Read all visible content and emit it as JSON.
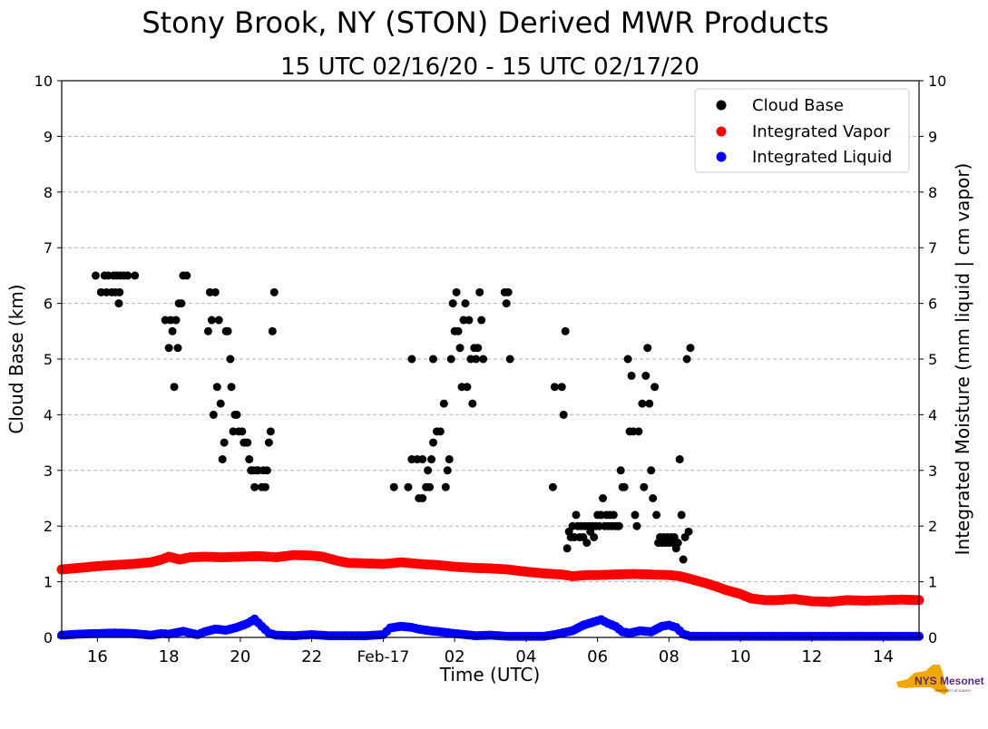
{
  "chart_data": {
    "type": "scatter",
    "title": "Stony Brook, NY (STON) Derived MWR Products",
    "subtitle": "15 UTC 02/16/20 - 15 UTC 02/17/20",
    "xlabel": "Time (UTC)",
    "ylabel": "Cloud Base (km)",
    "y2label": "Integrated Moisture (mm liquid | cm vapor)",
    "x_unit": "hours since 00 UTC 02/16/20",
    "xlim": [
      15,
      39
    ],
    "ylim": [
      0,
      10
    ],
    "y2lim": [
      0,
      10
    ],
    "x_ticks": [
      {
        "x": 16,
        "label": "16"
      },
      {
        "x": 18,
        "label": "18"
      },
      {
        "x": 20,
        "label": "20"
      },
      {
        "x": 22,
        "label": "22"
      },
      {
        "x": 24,
        "label": "Feb-17"
      },
      {
        "x": 26,
        "label": "02"
      },
      {
        "x": 28,
        "label": "04"
      },
      {
        "x": 30,
        "label": "06"
      },
      {
        "x": 32,
        "label": "08"
      },
      {
        "x": 34,
        "label": "10"
      },
      {
        "x": 36,
        "label": "12"
      },
      {
        "x": 38,
        "label": "14"
      }
    ],
    "y_ticks": [
      "0",
      "1",
      "2",
      "3",
      "4",
      "5",
      "6",
      "7",
      "8",
      "9",
      "10"
    ],
    "grid": "horizontal dashed",
    "legend_position": "top-right",
    "series": [
      {
        "name": "Cloud Base",
        "color": "#000000",
        "points": [
          [
            15.95,
            6.5
          ],
          [
            16.1,
            6.2
          ],
          [
            16.2,
            6.5
          ],
          [
            16.25,
            6.2
          ],
          [
            16.3,
            6.5
          ],
          [
            16.4,
            6.2
          ],
          [
            16.45,
            6.5
          ],
          [
            16.5,
            6.2
          ],
          [
            16.55,
            6.5
          ],
          [
            16.6,
            6.0
          ],
          [
            16.62,
            6.2
          ],
          [
            16.65,
            6.5
          ],
          [
            16.75,
            6.5
          ],
          [
            16.85,
            6.5
          ],
          [
            17.05,
            6.5
          ],
          [
            17.9,
            5.7
          ],
          [
            18.0,
            5.2
          ],
          [
            18.05,
            5.7
          ],
          [
            18.1,
            5.5
          ],
          [
            18.15,
            4.5
          ],
          [
            18.2,
            5.7
          ],
          [
            18.25,
            5.2
          ],
          [
            18.28,
            6.0
          ],
          [
            18.35,
            6.0
          ],
          [
            18.4,
            6.5
          ],
          [
            18.5,
            6.5
          ],
          [
            19.1,
            5.5
          ],
          [
            19.15,
            6.2
          ],
          [
            19.2,
            5.7
          ],
          [
            19.25,
            4.0
          ],
          [
            19.3,
            6.2
          ],
          [
            19.35,
            4.5
          ],
          [
            19.4,
            5.7
          ],
          [
            19.45,
            4.2
          ],
          [
            19.5,
            3.2
          ],
          [
            19.55,
            3.5
          ],
          [
            19.6,
            5.5
          ],
          [
            19.65,
            5.5
          ],
          [
            19.72,
            5.0
          ],
          [
            19.75,
            4.5
          ],
          [
            19.8,
            3.7
          ],
          [
            19.85,
            4.0
          ],
          [
            19.9,
            4.0
          ],
          [
            19.95,
            3.7
          ],
          [
            20.05,
            3.7
          ],
          [
            20.1,
            3.5
          ],
          [
            20.15,
            3.5
          ],
          [
            20.2,
            3.5
          ],
          [
            20.25,
            3.2
          ],
          [
            20.3,
            3.0
          ],
          [
            20.35,
            3.0
          ],
          [
            20.4,
            2.7
          ],
          [
            20.45,
            3.0
          ],
          [
            20.5,
            3.0
          ],
          [
            20.6,
            2.7
          ],
          [
            20.65,
            3.0
          ],
          [
            20.7,
            2.7
          ],
          [
            20.75,
            3.0
          ],
          [
            20.8,
            3.5
          ],
          [
            20.85,
            3.7
          ],
          [
            20.9,
            5.5
          ],
          [
            20.95,
            6.2
          ],
          [
            24.3,
            2.7
          ],
          [
            24.7,
            2.7
          ],
          [
            25.0,
            2.5
          ],
          [
            25.1,
            2.5
          ],
          [
            25.2,
            2.7
          ],
          [
            25.3,
            2.7
          ],
          [
            24.8,
            3.2
          ],
          [
            24.95,
            3.2
          ],
          [
            25.1,
            3.2
          ],
          [
            25.25,
            3.0
          ],
          [
            25.35,
            3.2
          ],
          [
            25.4,
            3.5
          ],
          [
            25.5,
            3.7
          ],
          [
            25.6,
            3.7
          ],
          [
            25.7,
            4.2
          ],
          [
            25.4,
            5.0
          ],
          [
            25.75,
            2.7
          ],
          [
            25.8,
            3.0
          ],
          [
            25.85,
            3.2
          ],
          [
            25.9,
            5.0
          ],
          [
            25.95,
            6.0
          ],
          [
            26.0,
            5.5
          ],
          [
            26.05,
            6.2
          ],
          [
            26.1,
            5.5
          ],
          [
            26.15,
            5.2
          ],
          [
            26.2,
            4.5
          ],
          [
            26.25,
            5.7
          ],
          [
            26.3,
            6.0
          ],
          [
            26.35,
            4.5
          ],
          [
            26.4,
            5.7
          ],
          [
            26.45,
            5.0
          ],
          [
            26.5,
            4.2
          ],
          [
            26.55,
            5.2
          ],
          [
            26.6,
            5.0
          ],
          [
            26.65,
            5.2
          ],
          [
            26.7,
            6.2
          ],
          [
            26.75,
            5.7
          ],
          [
            26.8,
            5.0
          ],
          [
            27.4,
            6.2
          ],
          [
            27.45,
            6.0
          ],
          [
            27.5,
            6.2
          ],
          [
            27.55,
            5.0
          ],
          [
            24.8,
            5.0
          ],
          [
            28.75,
            2.7
          ],
          [
            28.8,
            4.5
          ],
          [
            29.0,
            4.5
          ],
          [
            29.05,
            4.0
          ],
          [
            29.1,
            5.5
          ],
          [
            29.15,
            1.6
          ],
          [
            29.2,
            1.9
          ],
          [
            29.25,
            1.8
          ],
          [
            29.3,
            2.0
          ],
          [
            29.35,
            1.8
          ],
          [
            29.4,
            2.2
          ],
          [
            29.45,
            2.0
          ],
          [
            29.5,
            1.8
          ],
          [
            29.55,
            2.0
          ],
          [
            29.6,
            1.8
          ],
          [
            29.65,
            2.0
          ],
          [
            29.7,
            1.7
          ],
          [
            29.75,
            2.0
          ],
          [
            29.8,
            1.9
          ],
          [
            29.85,
            2.0
          ],
          [
            29.9,
            1.8
          ],
          [
            29.95,
            2.0
          ],
          [
            30.0,
            2.2
          ],
          [
            30.05,
            2.0
          ],
          [
            30.1,
            2.2
          ],
          [
            30.15,
            2.5
          ],
          [
            30.2,
            2.0
          ],
          [
            30.25,
            2.2
          ],
          [
            30.3,
            2.0
          ],
          [
            30.35,
            2.2
          ],
          [
            30.4,
            2.0
          ],
          [
            30.45,
            2.2
          ],
          [
            30.5,
            2.0
          ],
          [
            30.55,
            2.0
          ],
          [
            30.6,
            2.0
          ],
          [
            30.65,
            3.0
          ],
          [
            30.7,
            2.7
          ],
          [
            30.75,
            2.7
          ],
          [
            30.85,
            5.0
          ],
          [
            30.9,
            3.7
          ],
          [
            30.95,
            4.7
          ],
          [
            31.0,
            3.7
          ],
          [
            31.05,
            2.2
          ],
          [
            31.1,
            2.0
          ],
          [
            31.15,
            3.7
          ],
          [
            31.25,
            4.2
          ],
          [
            31.3,
            2.7
          ],
          [
            31.35,
            4.7
          ],
          [
            31.4,
            5.2
          ],
          [
            31.45,
            4.2
          ],
          [
            31.5,
            3.0
          ],
          [
            31.55,
            2.5
          ],
          [
            31.6,
            4.5
          ],
          [
            31.65,
            2.2
          ],
          [
            31.7,
            1.7
          ],
          [
            31.75,
            1.8
          ],
          [
            31.8,
            1.7
          ],
          [
            31.85,
            1.8
          ],
          [
            31.9,
            1.7
          ],
          [
            31.95,
            1.8
          ],
          [
            32.0,
            1.7
          ],
          [
            32.05,
            1.8
          ],
          [
            32.1,
            1.7
          ],
          [
            32.15,
            1.8
          ],
          [
            32.2,
            1.6
          ],
          [
            32.25,
            1.7
          ],
          [
            32.3,
            3.2
          ],
          [
            32.35,
            2.2
          ],
          [
            32.4,
            1.4
          ],
          [
            32.45,
            1.8
          ],
          [
            32.5,
            5.0
          ],
          [
            32.55,
            1.9
          ],
          [
            32.6,
            5.2
          ]
        ]
      },
      {
        "name": "Integrated Vapor",
        "color": "#ff0000",
        "points": [
          [
            15.0,
            1.22
          ],
          [
            15.5,
            1.25
          ],
          [
            16.0,
            1.28
          ],
          [
            16.5,
            1.3
          ],
          [
            17.0,
            1.32
          ],
          [
            17.5,
            1.35
          ],
          [
            17.8,
            1.4
          ],
          [
            18.0,
            1.45
          ],
          [
            18.3,
            1.4
          ],
          [
            18.6,
            1.44
          ],
          [
            19.0,
            1.45
          ],
          [
            19.5,
            1.44
          ],
          [
            20.0,
            1.45
          ],
          [
            20.5,
            1.46
          ],
          [
            20.8,
            1.45
          ],
          [
            21.0,
            1.44
          ],
          [
            21.5,
            1.48
          ],
          [
            22.0,
            1.47
          ],
          [
            22.3,
            1.45
          ],
          [
            22.7,
            1.38
          ],
          [
            23.0,
            1.34
          ],
          [
            23.5,
            1.33
          ],
          [
            24.0,
            1.32
          ],
          [
            24.2,
            1.33
          ],
          [
            24.5,
            1.35
          ],
          [
            25.0,
            1.32
          ],
          [
            25.5,
            1.3
          ],
          [
            26.0,
            1.27
          ],
          [
            26.5,
            1.25
          ],
          [
            27.0,
            1.24
          ],
          [
            27.5,
            1.22
          ],
          [
            28.0,
            1.18
          ],
          [
            28.5,
            1.15
          ],
          [
            29.0,
            1.13
          ],
          [
            29.3,
            1.1
          ],
          [
            29.7,
            1.12
          ],
          [
            30.0,
            1.12
          ],
          [
            30.5,
            1.13
          ],
          [
            31.0,
            1.14
          ],
          [
            31.5,
            1.13
          ],
          [
            32.0,
            1.12
          ],
          [
            32.3,
            1.1
          ],
          [
            32.6,
            1.05
          ],
          [
            33.0,
            0.98
          ],
          [
            33.3,
            0.92
          ],
          [
            33.6,
            0.85
          ],
          [
            34.0,
            0.78
          ],
          [
            34.3,
            0.7
          ],
          [
            34.7,
            0.67
          ],
          [
            35.0,
            0.67
          ],
          [
            35.5,
            0.69
          ],
          [
            36.0,
            0.65
          ],
          [
            36.5,
            0.64
          ],
          [
            37.0,
            0.67
          ],
          [
            37.5,
            0.66
          ],
          [
            38.0,
            0.67
          ],
          [
            38.5,
            0.68
          ],
          [
            39.0,
            0.67
          ]
        ]
      },
      {
        "name": "Integrated Liquid",
        "color": "#0000ff",
        "points": [
          [
            15.0,
            0.04
          ],
          [
            15.5,
            0.06
          ],
          [
            16.0,
            0.07
          ],
          [
            16.5,
            0.08
          ],
          [
            17.0,
            0.07
          ],
          [
            17.5,
            0.04
          ],
          [
            17.8,
            0.07
          ],
          [
            18.0,
            0.06
          ],
          [
            18.4,
            0.11
          ],
          [
            18.8,
            0.05
          ],
          [
            19.0,
            0.1
          ],
          [
            19.3,
            0.15
          ],
          [
            19.6,
            0.13
          ],
          [
            19.9,
            0.18
          ],
          [
            20.2,
            0.25
          ],
          [
            20.4,
            0.33
          ],
          [
            20.6,
            0.2
          ],
          [
            20.8,
            0.08
          ],
          [
            21.0,
            0.04
          ],
          [
            21.5,
            0.03
          ],
          [
            22.0,
            0.05
          ],
          [
            22.5,
            0.03
          ],
          [
            23.0,
            0.03
          ],
          [
            23.5,
            0.03
          ],
          [
            24.0,
            0.05
          ],
          [
            24.2,
            0.17
          ],
          [
            24.5,
            0.2
          ],
          [
            24.8,
            0.18
          ],
          [
            25.0,
            0.15
          ],
          [
            25.3,
            0.12
          ],
          [
            25.6,
            0.1
          ],
          [
            26.0,
            0.07
          ],
          [
            26.3,
            0.05
          ],
          [
            26.6,
            0.03
          ],
          [
            27.0,
            0.04
          ],
          [
            27.5,
            0.02
          ],
          [
            28.0,
            0.02
          ],
          [
            28.5,
            0.02
          ],
          [
            28.8,
            0.05
          ],
          [
            29.0,
            0.08
          ],
          [
            29.3,
            0.12
          ],
          [
            29.6,
            0.22
          ],
          [
            29.9,
            0.28
          ],
          [
            30.1,
            0.32
          ],
          [
            30.3,
            0.25
          ],
          [
            30.5,
            0.2
          ],
          [
            30.7,
            0.1
          ],
          [
            30.9,
            0.08
          ],
          [
            31.2,
            0.12
          ],
          [
            31.5,
            0.1
          ],
          [
            31.8,
            0.2
          ],
          [
            32.0,
            0.22
          ],
          [
            32.2,
            0.18
          ],
          [
            32.4,
            0.06
          ],
          [
            32.6,
            0.02
          ],
          [
            33.0,
            0.02
          ],
          [
            34.0,
            0.02
          ],
          [
            35.0,
            0.02
          ],
          [
            36.0,
            0.02
          ],
          [
            37.0,
            0.02
          ],
          [
            38.0,
            0.02
          ],
          [
            39.0,
            0.02
          ]
        ]
      }
    ]
  },
  "logo": {
    "text": "NYS Mesonet",
    "subtext": "UNIVERSITY AT ALBANY",
    "color": "#f0a800"
  }
}
